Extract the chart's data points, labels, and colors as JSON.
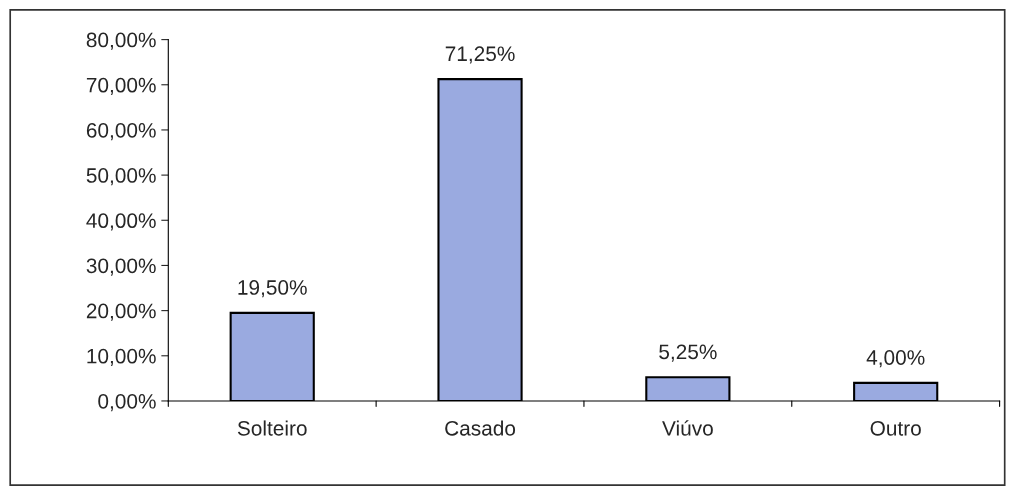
{
  "chart_data": {
    "type": "bar",
    "categories": [
      "Solteiro",
      "Casado",
      "Viúvo",
      "Outro"
    ],
    "values": [
      19.5,
      71.25,
      5.25,
      4.0
    ],
    "value_labels": [
      "19,50%",
      "71,25%",
      "5,25%",
      "4,00%"
    ],
    "color": "#9aaae0",
    "ylim": [
      0,
      80
    ],
    "yticks": [
      {
        "value": 0,
        "label": "0,00%"
      },
      {
        "value": 10,
        "label": "10,00%"
      },
      {
        "value": 20,
        "label": "20,00%"
      },
      {
        "value": 30,
        "label": "30,00%"
      },
      {
        "value": 40,
        "label": "40,00%"
      },
      {
        "value": 50,
        "label": "50,00%"
      },
      {
        "value": 60,
        "label": "60,00%"
      },
      {
        "value": 70,
        "label": "70,00%"
      },
      {
        "value": 80,
        "label": "80,00%"
      }
    ],
    "grid": false,
    "legend": false
  }
}
